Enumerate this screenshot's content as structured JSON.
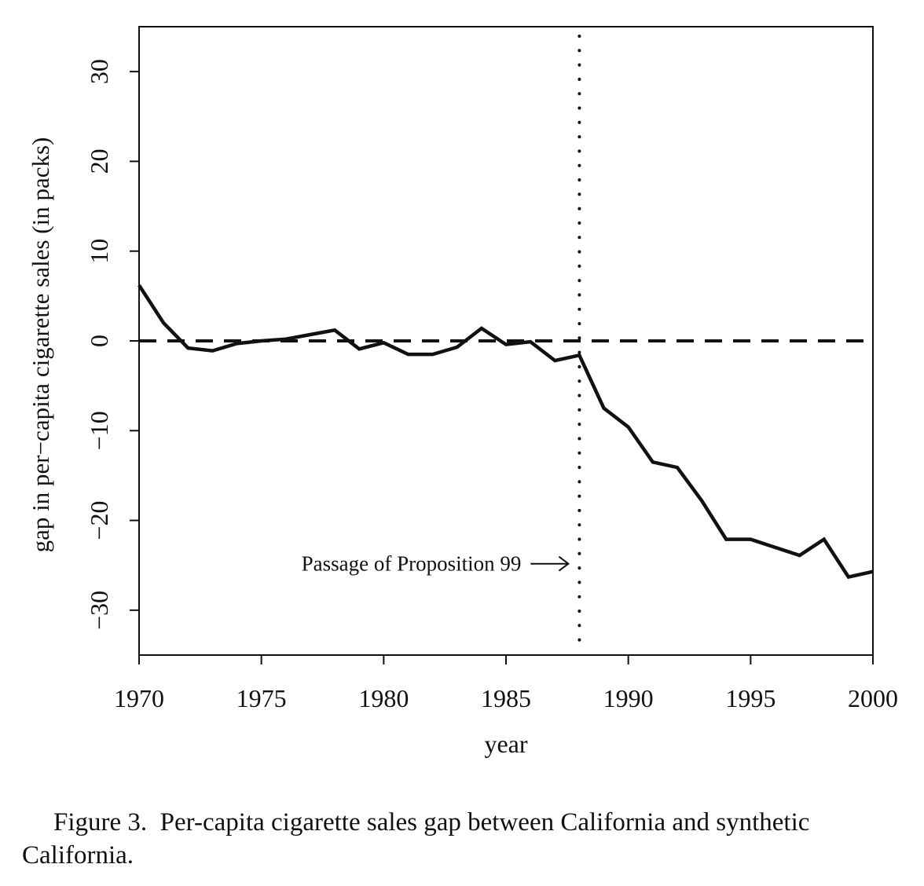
{
  "chart_data": {
    "type": "line",
    "title": "",
    "xlabel": "year",
    "ylabel": "gap in per−capita cigarette sales (in packs)",
    "xlim": [
      1970,
      2000
    ],
    "ylim": [
      -35,
      35
    ],
    "xticks": [
      1970,
      1975,
      1980,
      1985,
      1990,
      1995,
      2000
    ],
    "xtick_labels": [
      "1970",
      "1975",
      "1980",
      "1985",
      "1990",
      "1995",
      "2000"
    ],
    "yticks": [
      -30,
      -20,
      -10,
      0,
      10,
      20,
      30
    ],
    "ytick_labels": [
      "−30",
      "−20",
      "−10",
      "0",
      "10",
      "20",
      "30"
    ],
    "grid": false,
    "series": [
      {
        "name": "gap",
        "x": [
          1970,
          1971,
          1972,
          1973,
          1974,
          1975,
          1976,
          1977,
          1978,
          1979,
          1980,
          1981,
          1982,
          1983,
          1984,
          1985,
          1986,
          1987,
          1988,
          1989,
          1990,
          1991,
          1992,
          1993,
          1994,
          1995,
          1996,
          1997,
          1998,
          1999,
          2000
        ],
        "y": [
          6.2,
          2.0,
          -0.8,
          -1.1,
          -0.3,
          0.0,
          0.2,
          0.7,
          1.2,
          -0.9,
          -0.2,
          -1.5,
          -1.5,
          -0.7,
          1.4,
          -0.4,
          -0.1,
          -2.2,
          -1.6,
          -7.5,
          -9.6,
          -13.5,
          -14.1,
          -17.8,
          -22.1,
          -22.1,
          -23.0,
          -23.9,
          -22.1,
          -26.3,
          -25.7
        ]
      }
    ],
    "reference_lines": {
      "horizontal_zero": {
        "y": 0,
        "style": "dashed"
      },
      "vertical_event": {
        "x": 1988,
        "style": "dotted"
      }
    },
    "annotations": [
      {
        "text": "Passage of Proposition 99",
        "arrow_to_x": 1988,
        "y": -25
      }
    ]
  },
  "caption": {
    "label": "Figure 3.",
    "text": "Per-capita cigarette sales gap between California and synthetic California."
  }
}
